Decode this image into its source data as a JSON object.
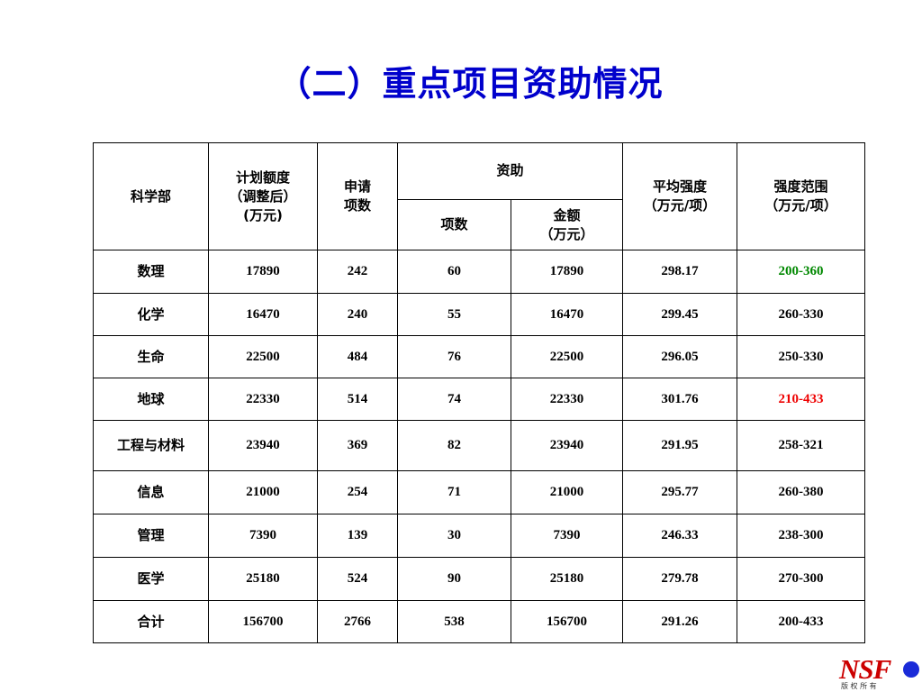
{
  "title": "（二）重点项目资助情况",
  "table": {
    "headers": {
      "dept": "科学部",
      "plan_l1": "计划额度",
      "plan_l2": "（调整后）",
      "plan_l3": "(万元)",
      "apply_l1": "申请",
      "apply_l2": "项数",
      "funded": "资助",
      "funded_count": "项数",
      "funded_amount_l1": "金额",
      "funded_amount_l2": "（万元）",
      "avg_l1": "平均强度",
      "avg_l2": "（万元/项）",
      "range_l1": "强度范围",
      "range_l2": "（万元/项）"
    },
    "rows": [
      {
        "dept": "数理",
        "plan": "17890",
        "apply": "242",
        "count": "60",
        "amount": "17890",
        "avg": "298.17",
        "range": "200-360"
      },
      {
        "dept": "化学",
        "plan": "16470",
        "apply": "240",
        "count": "55",
        "amount": "16470",
        "avg": "299.45",
        "range": "260-330"
      },
      {
        "dept": "生命",
        "plan": "22500",
        "apply": "484",
        "count": "76",
        "amount": "22500",
        "avg": "296.05",
        "range": "250-330"
      },
      {
        "dept": "地球",
        "plan": "22330",
        "apply": "514",
        "count": "74",
        "amount": "22330",
        "avg": "301.76",
        "range": "210-433"
      },
      {
        "dept": "工程与材料",
        "plan": "23940",
        "apply": "369",
        "count": "82",
        "amount": "23940",
        "avg": "291.95",
        "range": "258-321"
      },
      {
        "dept": "信息",
        "plan": "21000",
        "apply": "254",
        "count": "71",
        "amount": "21000",
        "avg": "295.77",
        "range": "260-380"
      },
      {
        "dept": "管理",
        "plan": "7390",
        "apply": "139",
        "count": "30",
        "amount": "7390",
        "avg": "246.33",
        "range": "238-300"
      },
      {
        "dept": "医学",
        "plan": "25180",
        "apply": "524",
        "count": "90",
        "amount": "25180",
        "avg": "279.78",
        "range": "270-300"
      }
    ],
    "total": {
      "dept": "合计",
      "plan": "156700",
      "apply": "2766",
      "count": "538",
      "amount": "156700",
      "avg": "291.26",
      "range": "200-433"
    }
  },
  "logo": {
    "text": "NSF",
    "caption": "版 权 所 有"
  },
  "colors": {
    "title": "#0000cc",
    "total": "#0000cc",
    "highlight_green": "#008800",
    "highlight_red": "#ee0000",
    "logo_red": "#cc0000"
  }
}
